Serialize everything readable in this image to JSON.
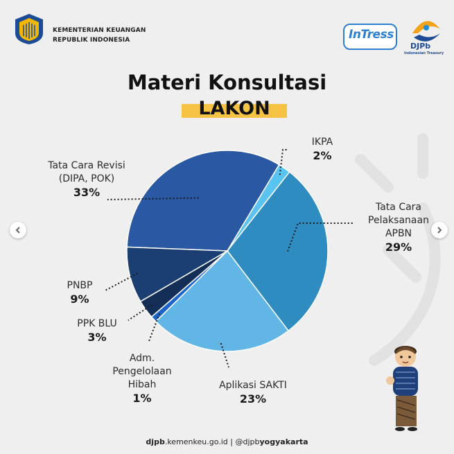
{
  "header": {
    "org_line1": "KEMENTERIAN KEUANGAN",
    "org_line2": "REPUBLIK INDONESIA",
    "intress_logo": "InTress",
    "djpb_logo": "DJPb",
    "djpb_tagline": "Indonesian Treasury"
  },
  "title": "Materi Konsultasi",
  "subtitle": "LAKON",
  "footer": {
    "site_bold": "djpb",
    "site_rest": ".kemenkeu.go.id",
    "sep": " | ",
    "handle_pre": "@djpb",
    "handle_bold": "yogyakarta"
  },
  "colors": {
    "accent_yellow": "#f6c244",
    "pie_dark_navy": "#1b3f73",
    "pie_navy": "#173866",
    "pie_blue": "#2a58a3",
    "pie_mid": "#2e8cc0",
    "pie_light": "#5fb3e5",
    "pie_cyan": "#59c3f1"
  },
  "chart_data": {
    "type": "pie",
    "title": "Materi Konsultasi",
    "subtitle": "LAKON",
    "slices": [
      {
        "label": "Tata Cara Revisi (DIPA, POK)",
        "label_lines": [
          "Tata Cara Revisi",
          "(DIPA, POK)"
        ],
        "value": 33,
        "pct_text": "33%",
        "color": "#2a58a3"
      },
      {
        "label": "IKPA",
        "label_lines": [
          "IKPA"
        ],
        "value": 2,
        "pct_text": "2%",
        "color": "#59c3f1"
      },
      {
        "label": "Tata Cara Pelaksanaan APBN",
        "label_lines": [
          "Tata Cara",
          "Pelaksanaan",
          "APBN"
        ],
        "value": 29,
        "pct_text": "29%",
        "color": "#2e8cc0"
      },
      {
        "label": "Aplikasi SAKTI",
        "label_lines": [
          "Aplikasi SAKTI"
        ],
        "value": 23,
        "pct_text": "23%",
        "color": "#62b6e6"
      },
      {
        "label": "Adm. Pengelolaan Hibah",
        "label_lines": [
          "Adm.",
          "Pengelolaan",
          "Hibah"
        ],
        "value": 1,
        "pct_text": "1%",
        "color": "#1e64c8"
      },
      {
        "label": "PPK BLU",
        "label_lines": [
          "PPK BLU"
        ],
        "value": 3,
        "pct_text": "3%",
        "color": "#142f57"
      },
      {
        "label": "PNBP",
        "label_lines": [
          "PNBP"
        ],
        "value": 9,
        "pct_text": "9%",
        "color": "#1b3f73"
      }
    ],
    "legend": "none"
  }
}
